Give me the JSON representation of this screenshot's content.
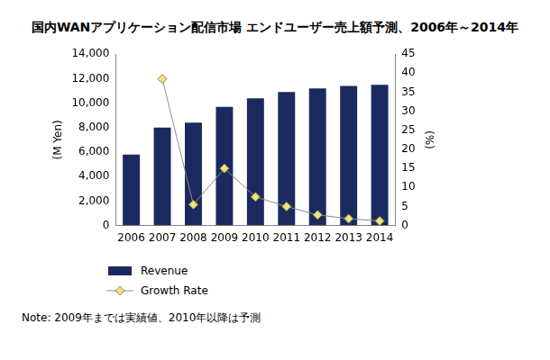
{
  "chart_data": {
    "type": "bar",
    "title": "国内WANアプリケーション配信市場 エンドユーザー売上額予測、2006年～2014年",
    "note": "Note: 2009年までは実績値、2010年以降は予測",
    "y_label": "(M Yen)",
    "y2_label": "(%)",
    "categories": [
      "2006",
      "2007",
      "2008",
      "2009",
      "2010",
      "2011",
      "2012",
      "2013",
      "2014"
    ],
    "series": [
      {
        "name": "Revenue",
        "type": "bar",
        "color": "#1b2a5e",
        "values": [
          5800,
          8000,
          8400,
          9700,
          10400,
          10900,
          11200,
          11400,
          11500
        ]
      },
      {
        "name": "Growth Rate",
        "type": "line",
        "axis": "y2",
        "color": "#f2e27a",
        "marker": "diamond",
        "line_style": "solid",
        "values": [
          null,
          38.5,
          5.5,
          15,
          7.5,
          5,
          2.8,
          1.8,
          1.2
        ]
      }
    ],
    "ylim": [
      0,
      14000
    ],
    "yticks": [
      0,
      {
        "value": 2000,
        "label": "2,000"
      },
      {
        "value": 4000,
        "label": "4,000"
      },
      {
        "value": 6000,
        "label": "6,000"
      },
      {
        "value": 8000,
        "label": "8,000"
      },
      {
        "value": 10000,
        "label": "10,000"
      },
      {
        "value": 12000,
        "label": "12,000"
      },
      {
        "value": 14000,
        "label": "14,000"
      }
    ],
    "y2lim": [
      0,
      45
    ],
    "y2ticks": [
      0,
      5,
      10,
      15,
      20,
      25,
      30,
      35,
      40,
      45
    ],
    "grid": false,
    "legend": "bottom"
  }
}
